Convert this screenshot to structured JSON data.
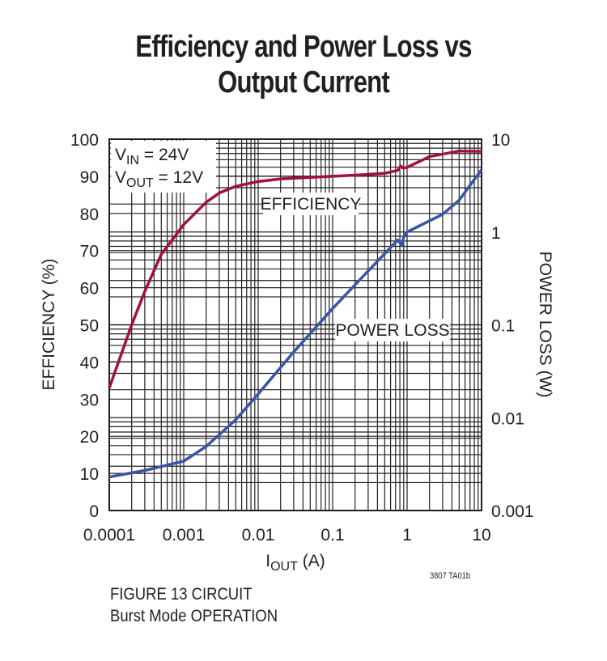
{
  "chart_data": {
    "type": "line",
    "title_lines": [
      "Efficiency and Power Loss vs",
      "Output Current"
    ],
    "x": {
      "label_main": "I",
      "label_sub": "OUT",
      "label_rest": " (A)",
      "scale": "log",
      "range": [
        0.0001,
        10
      ],
      "ticks": [
        "0.0001",
        "0.001",
        "0.01",
        "0.1",
        "1",
        "10"
      ]
    },
    "y_left": {
      "label": "EFFICIENCY (%)",
      "scale": "linear",
      "range": [
        0,
        100
      ],
      "ticks": [
        "0",
        "10",
        "20",
        "30",
        "40",
        "50",
        "60",
        "70",
        "80",
        "90",
        "100"
      ]
    },
    "y_right": {
      "label": "POWER LOSS (W)",
      "scale": "log",
      "range": [
        0.001,
        10
      ],
      "ticks": [
        "0.001",
        "0.01",
        "0.1",
        "1",
        "10"
      ]
    },
    "grid": true,
    "conditions": [
      {
        "main": "V",
        "sub": "IN",
        "rest": " = 24V"
      },
      {
        "main": "V",
        "sub": "OUT",
        "rest": " = 12V"
      }
    ],
    "series": [
      {
        "name": "EFFICIENCY",
        "axis": "left",
        "color": "#a0123a",
        "points": [
          [
            0.0001,
            33
          ],
          [
            0.0002,
            50
          ],
          [
            0.0003,
            59
          ],
          [
            0.0005,
            69
          ],
          [
            0.001,
            77
          ],
          [
            0.002,
            83
          ],
          [
            0.003,
            85.5
          ],
          [
            0.005,
            87.3
          ],
          [
            0.01,
            88.6
          ],
          [
            0.02,
            89.3
          ],
          [
            0.05,
            89.7
          ],
          [
            0.1,
            90
          ],
          [
            0.2,
            90.3
          ],
          [
            0.5,
            90.8
          ],
          [
            0.75,
            91.6
          ],
          [
            0.82,
            92.8
          ],
          [
            0.88,
            92.2
          ],
          [
            1,
            92.4
          ],
          [
            2,
            95.3
          ],
          [
            5,
            96.8
          ],
          [
            10,
            96.7
          ]
        ]
      },
      {
        "name": "POWER LOSS",
        "axis": "right",
        "color": "#3a55a4",
        "points": [
          [
            0.0001,
            0.0023
          ],
          [
            0.0003,
            0.0027
          ],
          [
            0.001,
            0.0034
          ],
          [
            0.002,
            0.0049
          ],
          [
            0.005,
            0.0095
          ],
          [
            0.01,
            0.018
          ],
          [
            0.03,
            0.051
          ],
          [
            0.1,
            0.15
          ],
          [
            0.3,
            0.38
          ],
          [
            0.75,
            0.82
          ],
          [
            0.85,
            0.72
          ],
          [
            0.9,
            0.88
          ],
          [
            1,
            1.0
          ],
          [
            3,
            1.55
          ],
          [
            5,
            2.2
          ],
          [
            10,
            4.7
          ]
        ]
      }
    ]
  },
  "footer": {
    "code": "3807 TA01b",
    "note_lines": [
      "FIGURE 13 CIRCUIT",
      "Burst Mode OPERATION"
    ]
  }
}
